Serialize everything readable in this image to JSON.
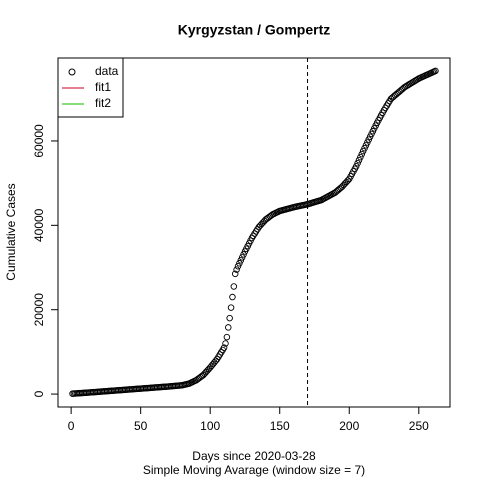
{
  "chart_data": {
    "type": "scatter",
    "title": "Kyrgyzstan / Gompertz",
    "xlabel": "Days since 2020-03-28",
    "subtitle": "Simple Moving Avarage (window size = 7)",
    "ylabel": "Cumulative Cases",
    "xlim": [
      -9.44,
      272.44
    ],
    "ylim": [
      -3064,
      79664
    ],
    "xticks": [
      0,
      50,
      100,
      150,
      200,
      250
    ],
    "yticks": [
      0,
      20000,
      40000,
      60000
    ],
    "vline": 170,
    "legend_position": "top-left",
    "series": [
      {
        "name": "data",
        "color": "#000000",
        "marker": "circle",
        "x": [
          1,
          2,
          3,
          4,
          5,
          6,
          7,
          8,
          9,
          10,
          11,
          12,
          13,
          14,
          15,
          16,
          17,
          18,
          19,
          20,
          21,
          22,
          23,
          24,
          25,
          26,
          27,
          28,
          29,
          30,
          31,
          32,
          33,
          34,
          35,
          36,
          37,
          38,
          39,
          40,
          41,
          42,
          43,
          44,
          45,
          46,
          47,
          48,
          49,
          50,
          51,
          52,
          53,
          54,
          55,
          56,
          57,
          58,
          59,
          60,
          61,
          62,
          63,
          64,
          65,
          66,
          67,
          68,
          69,
          70,
          71,
          72,
          73,
          74,
          75,
          76,
          77,
          78,
          79,
          80,
          81,
          82,
          83,
          84,
          85,
          86,
          87,
          88,
          89,
          90,
          91,
          92,
          93,
          94,
          95,
          96,
          97,
          98,
          99,
          100,
          101,
          102,
          103,
          104,
          105,
          106,
          107,
          108,
          109,
          110,
          111,
          112,
          113,
          114,
          115,
          116,
          117,
          118,
          119,
          120,
          121,
          122,
          123,
          124,
          125,
          126,
          127,
          128,
          129,
          130,
          131,
          132,
          133,
          134,
          135,
          136,
          137,
          138,
          139,
          140,
          141,
          142,
          143,
          144,
          145,
          146,
          147,
          148,
          149,
          150,
          151,
          152,
          153,
          154,
          155,
          156,
          157,
          158,
          159,
          160,
          161,
          162,
          163,
          164,
          165,
          166,
          167,
          168,
          169,
          170,
          171,
          172,
          173,
          174,
          175,
          176,
          177,
          178,
          179,
          180,
          181,
          182,
          183,
          184,
          185,
          186,
          187,
          188,
          189,
          190,
          191,
          192,
          193,
          194,
          195,
          196,
          197,
          198,
          199,
          200,
          201,
          202,
          203,
          204,
          205,
          206,
          207,
          208,
          209,
          210,
          211,
          212,
          213,
          214,
          215,
          216,
          217,
          218,
          219,
          220,
          221,
          222,
          223,
          224,
          225,
          226,
          227,
          228,
          229,
          230,
          231,
          232,
          233,
          234,
          235,
          236,
          237,
          238,
          239,
          240,
          241,
          242,
          243,
          244,
          245,
          246,
          247,
          248,
          249,
          250,
          251,
          252,
          253,
          254,
          255,
          256,
          257,
          258,
          259,
          260,
          261,
          262
        ],
        "values": [
          100,
          122,
          144,
          167,
          189,
          211,
          233,
          256,
          278,
          300,
          325,
          350,
          375,
          400,
          425,
          450,
          475,
          500,
          525,
          550,
          575,
          600,
          625,
          650,
          675,
          700,
          725,
          750,
          775,
          800,
          825,
          850,
          875,
          900,
          925,
          950,
          975,
          1000,
          1025,
          1050,
          1075,
          1100,
          1125,
          1150,
          1175,
          1200,
          1225,
          1250,
          1275,
          1300,
          1325,
          1350,
          1375,
          1400,
          1425,
          1450,
          1475,
          1500,
          1525,
          1550,
          1575,
          1600,
          1625,
          1650,
          1675,
          1700,
          1725,
          1750,
          1775,
          1800,
          1830,
          1860,
          1890,
          1920,
          1950,
          1980,
          2010,
          2040,
          2070,
          2100,
          2180,
          2260,
          2340,
          2420,
          2500,
          2660,
          2820,
          2980,
          3140,
          3300,
          3540,
          3780,
          4020,
          4260,
          4500,
          4860,
          5220,
          5580,
          5940,
          6300,
          6700,
          7100,
          7500,
          7900,
          8300,
          8840,
          9380,
          9920,
          10460,
          11000,
          12000,
          13500,
          15800,
          18000,
          20500,
          23000,
          25500,
          28500,
          29500,
          30300,
          31000,
          31700,
          32400,
          33100,
          33800,
          34440,
          35080,
          35720,
          36360,
          37000,
          37520,
          38040,
          38560,
          39080,
          39600,
          39960,
          40320,
          40680,
          41040,
          41400,
          41640,
          41880,
          42120,
          42360,
          42600,
          42760,
          42920,
          43080,
          43240,
          43400,
          43490,
          43580,
          43670,
          43760,
          43850,
          43940,
          44030,
          44120,
          44210,
          44300,
          44370,
          44440,
          44510,
          44580,
          44650,
          44720,
          44790,
          44860,
          44930,
          45000,
          45100,
          45200,
          45300,
          45400,
          45500,
          45600,
          45700,
          45800,
          45900,
          46000,
          46180,
          46360,
          46540,
          46720,
          46900,
          47080,
          47260,
          47440,
          47620,
          47800,
          48080,
          48360,
          48640,
          48920,
          49200,
          49560,
          49920,
          50280,
          50640,
          51000,
          51600,
          52200,
          52800,
          53400,
          54000,
          54720,
          55440,
          56160,
          56880,
          57600,
          58280,
          58960,
          59640,
          60320,
          61000,
          61660,
          62320,
          62980,
          63640,
          64300,
          64900,
          65500,
          66100,
          66700,
          67300,
          67840,
          68380,
          68920,
          69460,
          70000,
          70280,
          70560,
          70840,
          71120,
          71400,
          71680,
          71960,
          72240,
          72520,
          72800,
          73000,
          73200,
          73400,
          73600,
          73800,
          74000,
          74200,
          74400,
          74600,
          74800,
          74950,
          75100,
          75250,
          75400,
          75550,
          75700,
          75850,
          76000,
          76150,
          76300,
          76450,
          76600
        ]
      },
      {
        "name": "fit1",
        "color": "#df536b",
        "marker": "line",
        "x": [],
        "values": []
      },
      {
        "name": "fit2",
        "color": "#61d04f",
        "marker": "line",
        "x": [],
        "values": []
      }
    ]
  }
}
